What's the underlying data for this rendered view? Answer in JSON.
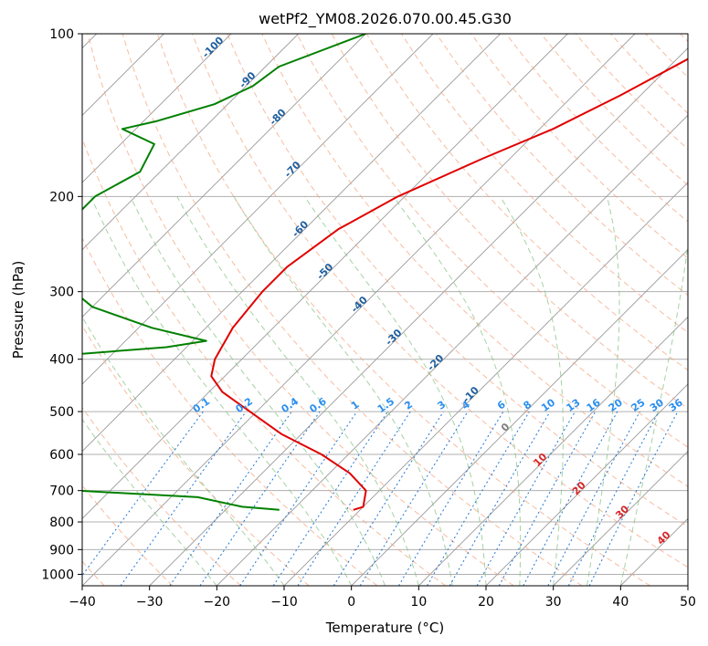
{
  "chart_data": {
    "type": "line",
    "title": "wetPf2_YM08.2026.070.00.45.G30",
    "xlabel": "Temperature (°C)",
    "ylabel": "Pressure (hPa)",
    "xlim": [
      -40,
      50
    ],
    "ylim": [
      1050,
      100
    ],
    "y_scale": "log",
    "skew": 1,
    "x_ticks": [
      -40,
      -30,
      -20,
      -10,
      0,
      10,
      20,
      30,
      40,
      50
    ],
    "x_tick_labels": [
      "−40",
      "−30",
      "−20",
      "−10",
      "0",
      "10",
      "20",
      "30",
      "40",
      "50"
    ],
    "y_ticks": [
      100,
      200,
      300,
      400,
      500,
      600,
      700,
      800,
      900,
      1000
    ],
    "y_tick_labels": [
      "100",
      "200",
      "300",
      "400",
      "500",
      "600",
      "700",
      "800",
      "900",
      "1000"
    ],
    "grid": true,
    "series": [
      {
        "id": "temperature",
        "color": "#e00000",
        "points": [
          [
            100,
            -26
          ],
          [
            110,
            -28
          ],
          [
            130,
            -33
          ],
          [
            150,
            -38
          ],
          [
            170,
            -44
          ],
          [
            200,
            -51
          ],
          [
            230,
            -55
          ],
          [
            270,
            -57
          ],
          [
            300,
            -57
          ],
          [
            350,
            -56
          ],
          [
            400,
            -54
          ],
          [
            430,
            -52
          ],
          [
            460,
            -48
          ],
          [
            500,
            -41
          ],
          [
            550,
            -33
          ],
          [
            600,
            -24
          ],
          [
            650,
            -17
          ],
          [
            700,
            -12
          ],
          [
            750,
            -10
          ],
          [
            760,
            -11
          ]
        ]
      },
      {
        "id": "dewpoint",
        "color": "#008000",
        "points": [
          [
            100,
            -80
          ],
          [
            115,
            -88
          ],
          [
            125,
            -89
          ],
          [
            135,
            -92
          ],
          [
            145,
            -98
          ],
          [
            150,
            -102
          ],
          [
            160,
            -95
          ],
          [
            180,
            -93
          ],
          [
            200,
            -96
          ],
          [
            215,
            -96
          ],
          [
            240,
            -92
          ],
          [
            270,
            -88
          ],
          [
            300,
            -85
          ],
          [
            320,
            -80
          ],
          [
            350,
            -68
          ],
          [
            370,
            -58
          ],
          [
            380,
            -63
          ],
          [
            395,
            -79
          ],
          [
            410,
            -96
          ],
          [
            420,
            -111
          ],
          [
            440,
            -119
          ],
          [
            450,
            -120
          ],
          [
            465,
            -100
          ],
          [
            490,
            -79
          ],
          [
            520,
            -70
          ],
          [
            540,
            -73
          ],
          [
            555,
            -77
          ],
          [
            575,
            -73
          ],
          [
            610,
            -69
          ],
          [
            650,
            -61
          ],
          [
            680,
            -73
          ],
          [
            690,
            -75
          ],
          [
            700,
            -55
          ],
          [
            720,
            -36
          ],
          [
            750,
            -28
          ],
          [
            760,
            -22
          ]
        ]
      }
    ],
    "dry_adiabat_labels": [
      -100,
      -90,
      -80,
      -70,
      -60,
      -50,
      -40,
      -30,
      -20,
      -10,
      0,
      10,
      20,
      30,
      40
    ],
    "mixing_ratio_labels": [
      "0.1",
      "0.2",
      "0.4",
      "0.6",
      "1",
      "1.5",
      "2",
      "3",
      "4",
      "6",
      "8",
      "10",
      "13",
      "16",
      "20",
      "25",
      "30",
      "36"
    ]
  },
  "colors": {
    "temperature": "#e00000",
    "dewpoint": "#008000",
    "dry_adiabat": "#f4a582",
    "moist_adiabat": "#7fbf7f",
    "mixing_ratio": "#1f77d4",
    "isotherm": "#7f7f7f",
    "dry_adiabat_label_cold": "#1f5f9f",
    "dry_adiabat_label_warm": "#d62728",
    "mixing_label": "#2a8ff0"
  }
}
